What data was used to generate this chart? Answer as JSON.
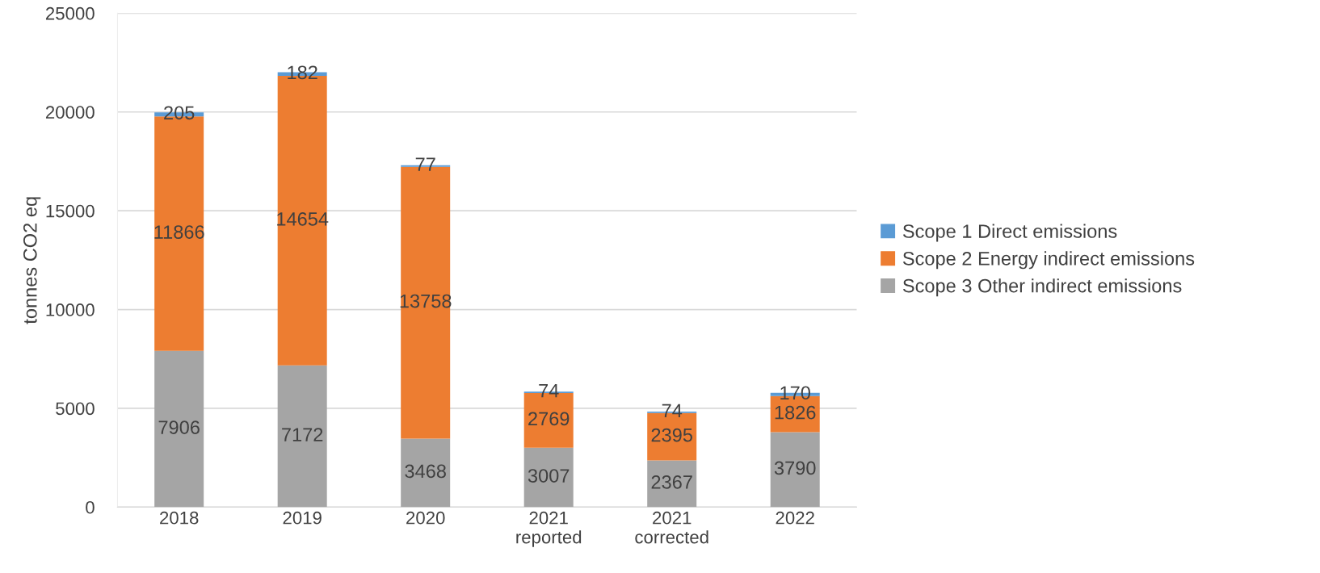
{
  "chart_data": {
    "type": "bar",
    "stacked": true,
    "ylabel": "tonnes CO2 eq",
    "categories": [
      "2018",
      "2019",
      "2020",
      "2021\nreported",
      "2021\ncorrected",
      "2022"
    ],
    "series": [
      {
        "name": "Scope 3 Other indirect emissions",
        "color": "#a5a5a5",
        "values": [
          7906,
          7172,
          3468,
          3007,
          2367,
          3790
        ]
      },
      {
        "name": "Scope 2 Energy indirect emissions",
        "color": "#ed7d31",
        "values": [
          11866,
          14654,
          13758,
          2769,
          2395,
          1826
        ]
      },
      {
        "name": "Scope 1 Direct emissions",
        "color": "#5b9bd5",
        "values": [
          205,
          182,
          77,
          74,
          74,
          170
        ]
      }
    ],
    "ylim": [
      0,
      25000
    ],
    "yticks": [
      0,
      5000,
      10000,
      15000,
      20000,
      25000
    ],
    "grid": "y",
    "legend": "right",
    "data_labels": true
  }
}
